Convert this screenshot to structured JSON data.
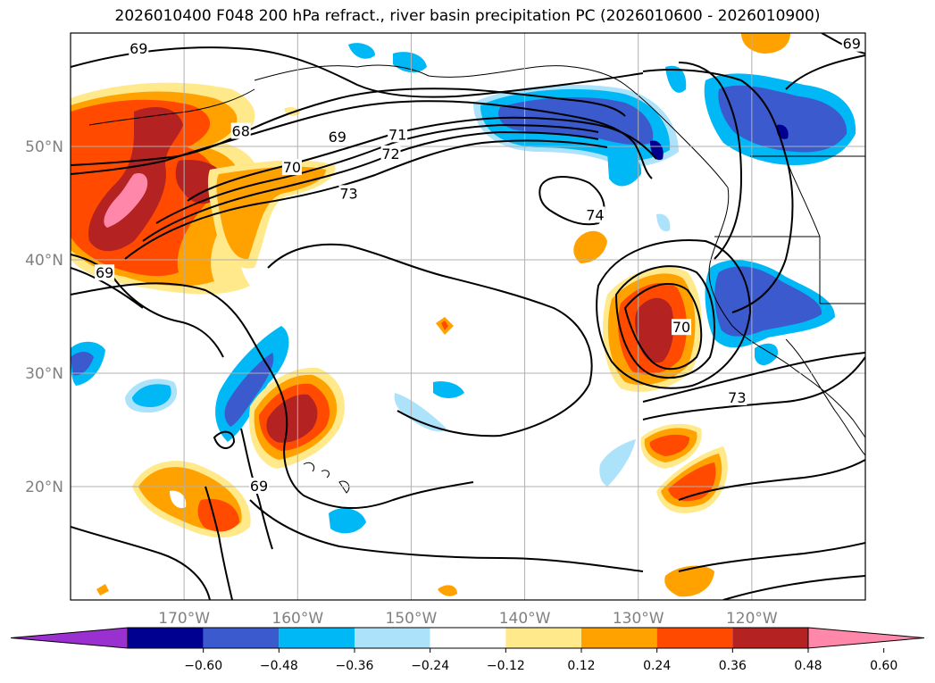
{
  "title": "2026010400 F048 200 hPa refract., river basin precipitation PC (2026010600 - 2026010900)",
  "map": {
    "lon_range": [
      -180,
      -110
    ],
    "lat_range": [
      10,
      60
    ],
    "lat_labels": [
      {
        "value": 20,
        "text": "20°N"
      },
      {
        "value": 30,
        "text": "30°N"
      },
      {
        "value": 40,
        "text": "40°N"
      },
      {
        "value": 50,
        "text": "50°N"
      }
    ],
    "lon_labels": [
      {
        "value": -170,
        "text": "170°W"
      },
      {
        "value": -160,
        "text": "160°W"
      },
      {
        "value": -150,
        "text": "150°W"
      },
      {
        "value": -140,
        "text": "140°W"
      },
      {
        "value": -130,
        "text": "130°W"
      },
      {
        "value": -120,
        "text": "120°W"
      }
    ],
    "grid": true,
    "contour_labels": [
      {
        "text": "69",
        "lon": -174,
        "lat": 58.6
      },
      {
        "text": "68",
        "lon": -165,
        "lat": 51.3
      },
      {
        "text": "69",
        "lon": -156.5,
        "lat": 50.8
      },
      {
        "text": "70",
        "lon": -160.5,
        "lat": 48.1
      },
      {
        "text": "71",
        "lon": -151.2,
        "lat": 51.0
      },
      {
        "text": "72",
        "lon": -151.8,
        "lat": 49.3
      },
      {
        "text": "73",
        "lon": -155.5,
        "lat": 45.8
      },
      {
        "text": "74",
        "lon": -133.8,
        "lat": 43.9
      },
      {
        "text": "69",
        "lon": -177,
        "lat": 38.8
      },
      {
        "text": "70",
        "lon": -126.2,
        "lat": 34.0
      },
      {
        "text": "73",
        "lon": -121.3,
        "lat": 27.8
      },
      {
        "text": "69",
        "lon": -163.4,
        "lat": 20.0
      },
      {
        "text": "69",
        "lon": -111.2,
        "lat": 59.0
      }
    ]
  },
  "colorbar": {
    "ticks": [
      "−0.60",
      "−0.48",
      "−0.36",
      "−0.24",
      "−0.12",
      "0.12",
      "0.24",
      "0.36",
      "0.48",
      "0.60"
    ],
    "colors": [
      "#9b30d0",
      "#000090",
      "#3a5acd",
      "#00b8f5",
      "#ade2fb",
      "#ffffff",
      "#ffe98a",
      "#ffa200",
      "#ff4a00",
      "#b42222",
      "#ff88aa"
    ]
  },
  "chart_data": {
    "type": "heatmap",
    "title": "2026010400 F048 200 hPa refract., river basin precipitation PC (2026010600 - 2026010900)",
    "field": "river basin precipitation PC (filled) with 200 hPa refractivity contours",
    "levels": [
      -0.6,
      -0.48,
      -0.36,
      -0.24,
      -0.12,
      0.12,
      0.24,
      0.36,
      0.48,
      0.6
    ],
    "contour_values": [
      68,
      69,
      70,
      71,
      72,
      73,
      74
    ],
    "xlim": [
      -180,
      -110
    ],
    "ylim": [
      10,
      60
    ]
  }
}
